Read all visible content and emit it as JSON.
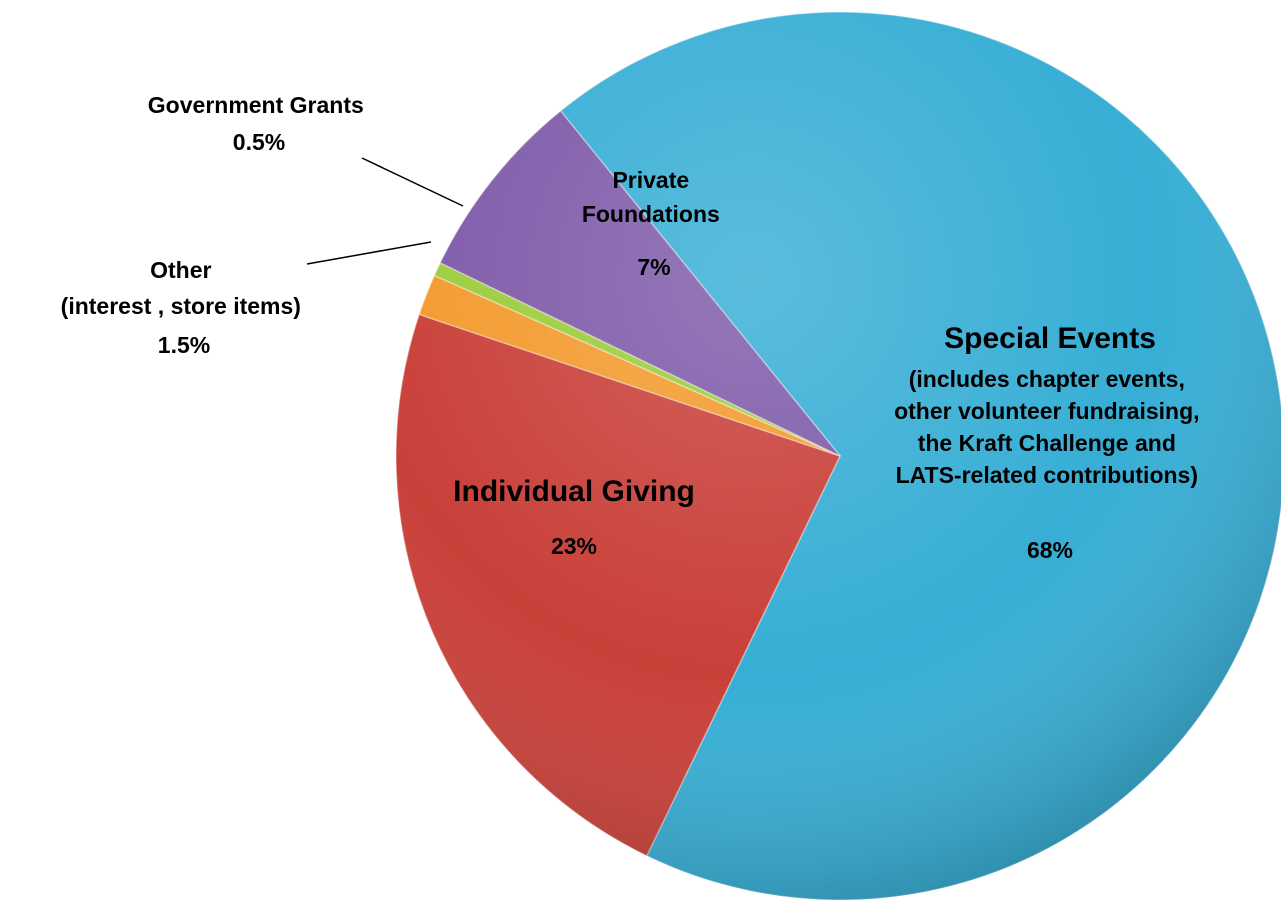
{
  "chart_data": {
    "type": "pie",
    "slices": [
      {
        "name": "Special Events",
        "detail": [
          "(includes chapter events,",
          "other volunteer fundraising,",
          "the Kraft Challenge and",
          "LATS-related contributions)"
        ],
        "value": 68,
        "value_label": "68%",
        "color": "#37aed5"
      },
      {
        "name": "Individual Giving",
        "detail": [],
        "value": 23,
        "value_label": "23%",
        "color": "#c94039"
      },
      {
        "name": "Other",
        "detail": [
          "(interest , store items)"
        ],
        "value": 1.5,
        "value_label": "1.5%",
        "color": "#f39a2e"
      },
      {
        "name": "Government Grants",
        "detail": [],
        "value": 0.5,
        "value_label": "0.5%",
        "color": "#9ccc3c"
      },
      {
        "name": "Private Foundations",
        "detail": [],
        "value": 7,
        "value_label": "7%",
        "color": "#7e5aa9"
      }
    ],
    "private_foundations_label_lines": [
      "Private",
      "Foundations"
    ],
    "legend": "none"
  }
}
